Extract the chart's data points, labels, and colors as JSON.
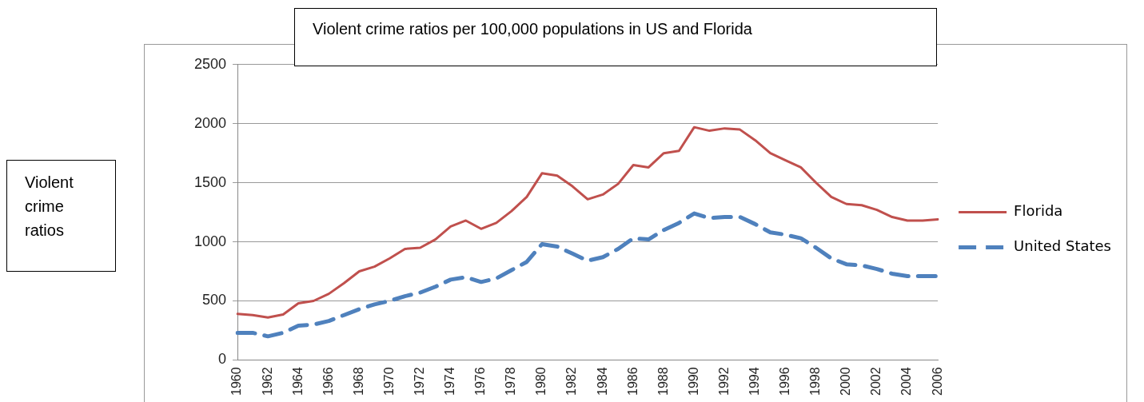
{
  "chart_data": {
    "type": "line",
    "title": "Violent crime ratios per 100,000 populations in US and Florida",
    "annotations": [
      "Violent crime ratios"
    ],
    "categories": [
      "1960",
      null,
      "1962",
      null,
      "1964",
      null,
      "1966",
      null,
      "1968",
      null,
      "1970",
      null,
      "1972",
      null,
      "1974",
      null,
      "1976",
      null,
      "1978",
      null,
      "1980",
      null,
      "1982",
      null,
      "1984",
      null,
      "1986",
      null,
      "1988",
      null,
      "1990",
      null,
      "1992",
      null,
      "1994",
      null,
      "1996",
      null,
      "1998",
      null,
      "2000",
      null,
      "2002",
      null,
      "2004",
      null,
      "2006"
    ],
    "series": [
      {
        "name": "Florida",
        "color": "#c0504d",
        "line_style": "solid",
        "values": [
          390,
          380,
          360,
          385,
          480,
          500,
          560,
          650,
          750,
          790,
          860,
          940,
          950,
          1020,
          1130,
          1180,
          1110,
          1160,
          1260,
          1380,
          1580,
          1560,
          1470,
          1360,
          1400,
          1490,
          1650,
          1630,
          1750,
          1770,
          1970,
          1940,
          1960,
          1950,
          1860,
          1750,
          1690,
          1630,
          1500,
          1380,
          1320,
          1310,
          1270,
          1210,
          1180,
          1180,
          1190
        ]
      },
      {
        "name": "United States",
        "color": "#4f81bd",
        "line_style": "dashed",
        "values": [
          230,
          230,
          200,
          230,
          290,
          300,
          330,
          380,
          430,
          470,
          500,
          540,
          570,
          620,
          680,
          700,
          660,
          690,
          760,
          830,
          980,
          960,
          900,
          840,
          870,
          940,
          1030,
          1020,
          1100,
          1160,
          1240,
          1200,
          1210,
          1210,
          1150,
          1080,
          1060,
          1030,
          950,
          860,
          810,
          800,
          770,
          730,
          710,
          710,
          710
        ]
      }
    ],
    "ylim": [
      0,
      2500
    ],
    "yticks": [
      0,
      500,
      1000,
      1500,
      2000,
      2500
    ],
    "grid": "y",
    "legend": "right",
    "marker": "none"
  }
}
